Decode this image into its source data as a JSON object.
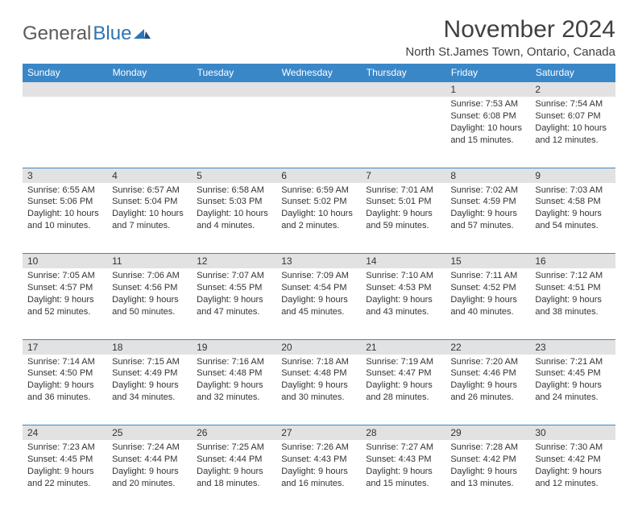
{
  "logo": {
    "gen": "General",
    "blue": "Blue"
  },
  "title": "November 2024",
  "location": "North St.James Town, Ontario, Canada",
  "colors": {
    "header_bg": "#3a87c8",
    "header_fg": "#ffffff",
    "daynum_bg": "#e2e2e2",
    "border": "#3a87c8",
    "text": "#333333",
    "logo_gray": "#5b5b5b",
    "logo_blue": "#2e74b5"
  },
  "weekdays": [
    "Sunday",
    "Monday",
    "Tuesday",
    "Wednesday",
    "Thursday",
    "Friday",
    "Saturday"
  ],
  "weeks": [
    [
      null,
      null,
      null,
      null,
      null,
      {
        "n": "1",
        "sr": "Sunrise: 7:53 AM",
        "ss": "Sunset: 6:08 PM",
        "d1": "Daylight: 10 hours",
        "d2": "and 15 minutes."
      },
      {
        "n": "2",
        "sr": "Sunrise: 7:54 AM",
        "ss": "Sunset: 6:07 PM",
        "d1": "Daylight: 10 hours",
        "d2": "and 12 minutes."
      }
    ],
    [
      {
        "n": "3",
        "sr": "Sunrise: 6:55 AM",
        "ss": "Sunset: 5:06 PM",
        "d1": "Daylight: 10 hours",
        "d2": "and 10 minutes."
      },
      {
        "n": "4",
        "sr": "Sunrise: 6:57 AM",
        "ss": "Sunset: 5:04 PM",
        "d1": "Daylight: 10 hours",
        "d2": "and 7 minutes."
      },
      {
        "n": "5",
        "sr": "Sunrise: 6:58 AM",
        "ss": "Sunset: 5:03 PM",
        "d1": "Daylight: 10 hours",
        "d2": "and 4 minutes."
      },
      {
        "n": "6",
        "sr": "Sunrise: 6:59 AM",
        "ss": "Sunset: 5:02 PM",
        "d1": "Daylight: 10 hours",
        "d2": "and 2 minutes."
      },
      {
        "n": "7",
        "sr": "Sunrise: 7:01 AM",
        "ss": "Sunset: 5:01 PM",
        "d1": "Daylight: 9 hours",
        "d2": "and 59 minutes."
      },
      {
        "n": "8",
        "sr": "Sunrise: 7:02 AM",
        "ss": "Sunset: 4:59 PM",
        "d1": "Daylight: 9 hours",
        "d2": "and 57 minutes."
      },
      {
        "n": "9",
        "sr": "Sunrise: 7:03 AM",
        "ss": "Sunset: 4:58 PM",
        "d1": "Daylight: 9 hours",
        "d2": "and 54 minutes."
      }
    ],
    [
      {
        "n": "10",
        "sr": "Sunrise: 7:05 AM",
        "ss": "Sunset: 4:57 PM",
        "d1": "Daylight: 9 hours",
        "d2": "and 52 minutes."
      },
      {
        "n": "11",
        "sr": "Sunrise: 7:06 AM",
        "ss": "Sunset: 4:56 PM",
        "d1": "Daylight: 9 hours",
        "d2": "and 50 minutes."
      },
      {
        "n": "12",
        "sr": "Sunrise: 7:07 AM",
        "ss": "Sunset: 4:55 PM",
        "d1": "Daylight: 9 hours",
        "d2": "and 47 minutes."
      },
      {
        "n": "13",
        "sr": "Sunrise: 7:09 AM",
        "ss": "Sunset: 4:54 PM",
        "d1": "Daylight: 9 hours",
        "d2": "and 45 minutes."
      },
      {
        "n": "14",
        "sr": "Sunrise: 7:10 AM",
        "ss": "Sunset: 4:53 PM",
        "d1": "Daylight: 9 hours",
        "d2": "and 43 minutes."
      },
      {
        "n": "15",
        "sr": "Sunrise: 7:11 AM",
        "ss": "Sunset: 4:52 PM",
        "d1": "Daylight: 9 hours",
        "d2": "and 40 minutes."
      },
      {
        "n": "16",
        "sr": "Sunrise: 7:12 AM",
        "ss": "Sunset: 4:51 PM",
        "d1": "Daylight: 9 hours",
        "d2": "and 38 minutes."
      }
    ],
    [
      {
        "n": "17",
        "sr": "Sunrise: 7:14 AM",
        "ss": "Sunset: 4:50 PM",
        "d1": "Daylight: 9 hours",
        "d2": "and 36 minutes."
      },
      {
        "n": "18",
        "sr": "Sunrise: 7:15 AM",
        "ss": "Sunset: 4:49 PM",
        "d1": "Daylight: 9 hours",
        "d2": "and 34 minutes."
      },
      {
        "n": "19",
        "sr": "Sunrise: 7:16 AM",
        "ss": "Sunset: 4:48 PM",
        "d1": "Daylight: 9 hours",
        "d2": "and 32 minutes."
      },
      {
        "n": "20",
        "sr": "Sunrise: 7:18 AM",
        "ss": "Sunset: 4:48 PM",
        "d1": "Daylight: 9 hours",
        "d2": "and 30 minutes."
      },
      {
        "n": "21",
        "sr": "Sunrise: 7:19 AM",
        "ss": "Sunset: 4:47 PM",
        "d1": "Daylight: 9 hours",
        "d2": "and 28 minutes."
      },
      {
        "n": "22",
        "sr": "Sunrise: 7:20 AM",
        "ss": "Sunset: 4:46 PM",
        "d1": "Daylight: 9 hours",
        "d2": "and 26 minutes."
      },
      {
        "n": "23",
        "sr": "Sunrise: 7:21 AM",
        "ss": "Sunset: 4:45 PM",
        "d1": "Daylight: 9 hours",
        "d2": "and 24 minutes."
      }
    ],
    [
      {
        "n": "24",
        "sr": "Sunrise: 7:23 AM",
        "ss": "Sunset: 4:45 PM",
        "d1": "Daylight: 9 hours",
        "d2": "and 22 minutes."
      },
      {
        "n": "25",
        "sr": "Sunrise: 7:24 AM",
        "ss": "Sunset: 4:44 PM",
        "d1": "Daylight: 9 hours",
        "d2": "and 20 minutes."
      },
      {
        "n": "26",
        "sr": "Sunrise: 7:25 AM",
        "ss": "Sunset: 4:44 PM",
        "d1": "Daylight: 9 hours",
        "d2": "and 18 minutes."
      },
      {
        "n": "27",
        "sr": "Sunrise: 7:26 AM",
        "ss": "Sunset: 4:43 PM",
        "d1": "Daylight: 9 hours",
        "d2": "and 16 minutes."
      },
      {
        "n": "28",
        "sr": "Sunrise: 7:27 AM",
        "ss": "Sunset: 4:43 PM",
        "d1": "Daylight: 9 hours",
        "d2": "and 15 minutes."
      },
      {
        "n": "29",
        "sr": "Sunrise: 7:28 AM",
        "ss": "Sunset: 4:42 PM",
        "d1": "Daylight: 9 hours",
        "d2": "and 13 minutes."
      },
      {
        "n": "30",
        "sr": "Sunrise: 7:30 AM",
        "ss": "Sunset: 4:42 PM",
        "d1": "Daylight: 9 hours",
        "d2": "and 12 minutes."
      }
    ]
  ]
}
